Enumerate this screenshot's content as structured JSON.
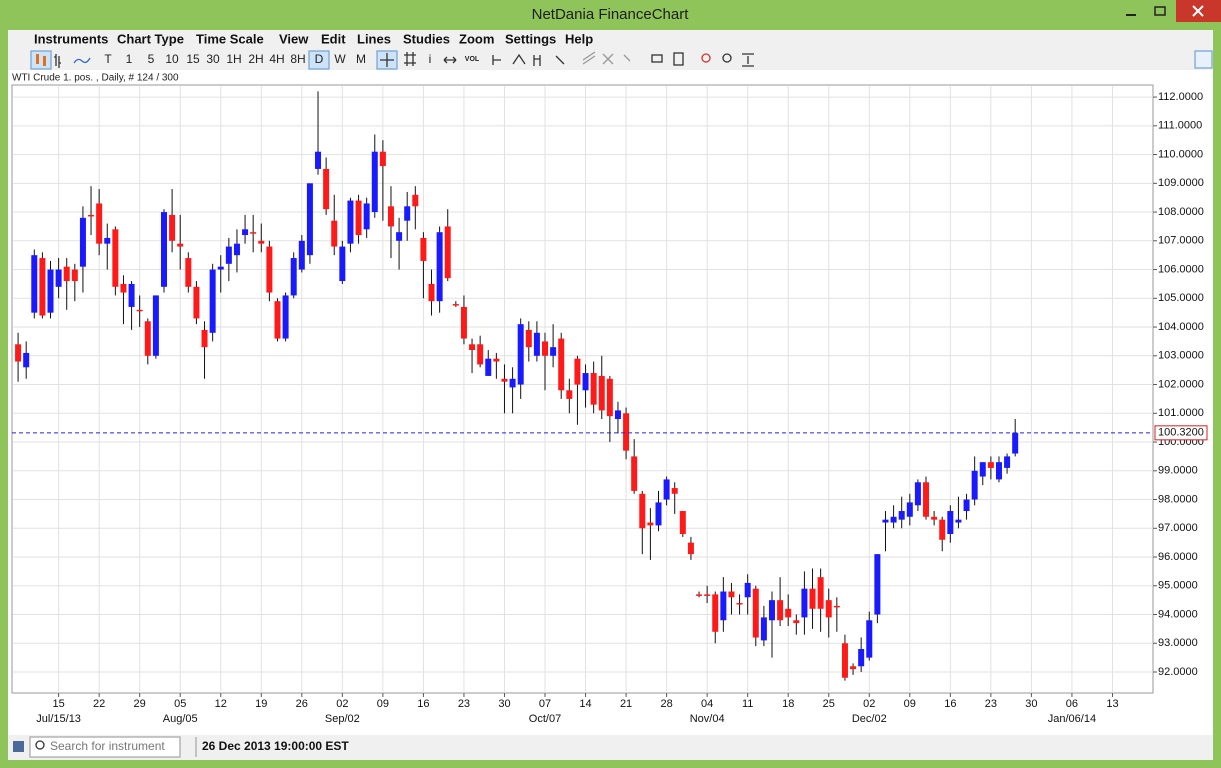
{
  "window": {
    "title": "NetDania FinanceChart"
  },
  "menu": [
    "Instruments",
    "Chart Type",
    "Time Scale",
    "View",
    "Edit",
    "Lines",
    "Studies",
    "Zoom",
    "Settings",
    "Help"
  ],
  "toolbar": {
    "periods": [
      "T",
      "1",
      "5",
      "10",
      "15",
      "30",
      "1H",
      "2H",
      "4H",
      "8H",
      "D",
      "W",
      "M"
    ],
    "info": "i",
    "volume": "VOL"
  },
  "chart_info": "WTI Crude 1. pos. , Daily, # 124 / 300",
  "chart_data": {
    "type": "candlestick",
    "up_color": "#1a1aff",
    "down_color": "#ff1a1a",
    "grid": true,
    "open": [
      103.4,
      102.6,
      104.5,
      106.4,
      104.5,
      105.4,
      106.1,
      106.0,
      106.1,
      107.9,
      108.3,
      106.9,
      107.4,
      105.5,
      104.7,
      104.6,
      104.2,
      103.0,
      105.4,
      107.9,
      106.9,
      106.4,
      105.4,
      103.9,
      103.8,
      106.0,
      106.2,
      106.5,
      107.2,
      107.3,
      107.0,
      106.8,
      104.9,
      103.6,
      105.1,
      106.0,
      106.5,
      109.5,
      109.5,
      107.7,
      105.6,
      106.9,
      108.4,
      107.4,
      108.0,
      110.1,
      108.2,
      107.0,
      107.7,
      108.6,
      107.1,
      105.5,
      104.9,
      107.5,
      104.8,
      104.7,
      103.4,
      103.4,
      102.3,
      102.9,
      102.2,
      101.9,
      102.0,
      103.9,
      103.0,
      103.5,
      103.0,
      103.6,
      101.8,
      102.9,
      101.8,
      102.4,
      102.3,
      102.2,
      100.8,
      101.0,
      99.5,
      98.2,
      97.2,
      97.1,
      98.0,
      98.4,
      97.6,
      96.5,
      94.7,
      94.7,
      94.7,
      93.8,
      94.8,
      94.4,
      94.6,
      94.9,
      93.1,
      93.8,
      94.5,
      94.2,
      93.8,
      93.9,
      94.9,
      95.3,
      94.5,
      94.3,
      93.0,
      92.2,
      92.2,
      92.5,
      94.0,
      97.2,
      97.2,
      97.3,
      97.4,
      97.8,
      98.6,
      97.4,
      97.3,
      96.8,
      97.2,
      97.6,
      98.0,
      98.8,
      99.3,
      98.7,
      99.1,
      99.6
    ],
    "high": [
      103.8,
      103.5,
      106.7,
      106.6,
      106.3,
      106.4,
      106.4,
      106.2,
      108.2,
      108.9,
      108.8,
      107.6,
      107.5,
      105.8,
      105.6,
      105.1,
      104.3,
      105.1,
      108.1,
      108.8,
      107.9,
      106.6,
      105.6,
      104.2,
      106.2,
      106.5,
      107.1,
      107.4,
      107.9,
      107.9,
      107.6,
      107.0,
      105.0,
      105.2,
      106.6,
      107.2,
      109.0,
      112.2,
      109.9,
      108.6,
      107.0,
      108.5,
      108.6,
      108.5,
      110.7,
      110.5,
      108.9,
      107.8,
      108.7,
      108.9,
      107.3,
      106.0,
      107.5,
      108.1,
      104.9,
      105.1,
      103.6,
      103.7,
      103.2,
      103.1,
      102.7,
      102.6,
      104.3,
      104.2,
      104.2,
      103.8,
      104.1,
      103.8,
      102.2,
      103.0,
      102.7,
      102.8,
      103.0,
      102.3,
      101.4,
      101.2,
      100.1,
      98.3,
      97.7,
      98.3,
      98.8,
      98.6,
      97.6,
      96.7,
      94.8,
      95.0,
      94.8,
      95.3,
      95.1,
      94.7,
      95.4,
      95.0,
      94.3,
      94.8,
      95.3,
      94.7,
      94.0,
      95.5,
      95.6,
      95.6,
      94.9,
      94.6,
      93.3,
      92.3,
      93.2,
      94.1,
      96.1,
      97.6,
      97.8,
      98.1,
      98.2,
      98.7,
      98.8,
      97.6,
      97.4,
      97.8,
      98.1,
      98.2,
      99.5,
      99.3,
      99.5,
      99.5,
      99.6,
      100.8
    ],
    "low": [
      102.1,
      102.2,
      104.3,
      104.3,
      104.3,
      105.0,
      104.6,
      104.9,
      105.2,
      107.2,
      106.5,
      106.0,
      105.1,
      104.1,
      103.9,
      104.0,
      102.7,
      102.9,
      105.2,
      106.6,
      106.0,
      105.2,
      104.1,
      102.2,
      103.5,
      105.2,
      105.6,
      105.9,
      106.9,
      106.6,
      106.6,
      104.9,
      103.5,
      103.5,
      105.0,
      105.9,
      106.2,
      109.3,
      107.9,
      106.5,
      105.5,
      106.6,
      106.9,
      107.1,
      107.8,
      107.7,
      106.4,
      106.0,
      107.0,
      107.4,
      105.0,
      104.4,
      104.5,
      105.6,
      104.7,
      103.4,
      102.4,
      102.6,
      102.3,
      102.2,
      101.0,
      101.0,
      101.5,
      102.8,
      102.8,
      101.8,
      102.6,
      101.5,
      101.0,
      100.6,
      101.2,
      101.0,
      100.8,
      100.0,
      100.3,
      99.4,
      98.2,
      96.1,
      95.9,
      96.9,
      97.8,
      97.5,
      96.7,
      95.9,
      94.6,
      94.4,
      93.0,
      93.4,
      94.0,
      94.0,
      94.0,
      92.9,
      92.9,
      92.5,
      93.6,
      93.6,
      93.3,
      93.3,
      93.5,
      93.4,
      93.2,
      93.4,
      91.7,
      91.9,
      92.0,
      92.4,
      93.7,
      96.2,
      97.0,
      97.0,
      97.1,
      97.6,
      97.3,
      97.1,
      96.2,
      96.5,
      97.0,
      97.3,
      97.8,
      98.5,
      98.7,
      98.6,
      98.9,
      99.5
    ],
    "close": [
      102.8,
      103.1,
      106.5,
      104.4,
      106.0,
      106.0,
      105.6,
      105.6,
      107.8,
      107.85,
      106.9,
      107.1,
      105.4,
      105.2,
      105.5,
      104.6,
      103.0,
      105.1,
      108.0,
      107.0,
      106.8,
      105.4,
      104.3,
      103.3,
      106.0,
      106.1,
      106.8,
      106.9,
      107.4,
      107.3,
      106.9,
      105.2,
      103.6,
      105.1,
      106.4,
      107.0,
      109.0,
      110.1,
      108.1,
      106.8,
      106.8,
      108.4,
      107.2,
      108.3,
      110.1,
      109.6,
      107.5,
      107.3,
      108.2,
      108.2,
      106.3,
      104.9,
      107.3,
      105.7,
      104.8,
      103.6,
      103.2,
      102.7,
      102.9,
      102.8,
      102.1,
      102.2,
      104.1,
      103.3,
      103.8,
      103.0,
      103.3,
      101.8,
      101.5,
      102.0,
      102.4,
      101.3,
      101.1,
      100.9,
      101.1,
      99.7,
      98.3,
      97.0,
      97.1,
      97.9,
      98.7,
      98.2,
      96.8,
      96.1,
      94.7,
      94.7,
      93.4,
      94.8,
      94.6,
      94.4,
      95.1,
      93.2,
      93.9,
      94.5,
      93.8,
      93.9,
      93.7,
      94.9,
      94.2,
      94.2,
      93.9,
      94.3,
      91.8,
      92.1,
      92.8,
      93.8,
      96.1,
      97.3,
      97.4,
      97.6,
      97.9,
      98.6,
      97.4,
      97.3,
      96.6,
      97.6,
      97.3,
      98.0,
      99.0,
      99.3,
      99.1,
      99.3,
      99.5,
      100.32
    ],
    "last": {
      "value": 100.32,
      "label": "100.3200"
    },
    "ylim": [
      91.27,
      112.42
    ],
    "yticks": [
      {
        "value": 92,
        "label": "92.0000"
      },
      {
        "value": 93,
        "label": "93.0000"
      },
      {
        "value": 94,
        "label": "94.0000"
      },
      {
        "value": 95,
        "label": "95.0000"
      },
      {
        "value": 96,
        "label": "96.0000"
      },
      {
        "value": 97,
        "label": "97.0000"
      },
      {
        "value": 98,
        "label": "98.0000"
      },
      {
        "value": 99,
        "label": "99.0000"
      },
      {
        "value": 100,
        "label": "100.0000"
      },
      {
        "value": 101,
        "label": "101.0000"
      },
      {
        "value": 102,
        "label": "102.0000"
      },
      {
        "value": 103,
        "label": "103.0000"
      },
      {
        "value": 104,
        "label": "104.0000"
      },
      {
        "value": 105,
        "label": "105.0000"
      },
      {
        "value": 106,
        "label": "106.0000"
      },
      {
        "value": 107,
        "label": "107.0000"
      },
      {
        "value": 108,
        "label": "108.0000"
      },
      {
        "value": 109,
        "label": "109.0000"
      },
      {
        "value": 110,
        "label": "110.0000"
      },
      {
        "value": 111,
        "label": "111.0000"
      },
      {
        "value": 112,
        "label": "112.0000"
      }
    ],
    "xlim": [
      -0.75,
      140
    ],
    "xticks": [
      {
        "value": 5,
        "label": "15"
      },
      {
        "value": 10,
        "label": "22"
      },
      {
        "value": 15,
        "label": "29"
      },
      {
        "value": 20,
        "label": "05"
      },
      {
        "value": 25,
        "label": "12"
      },
      {
        "value": 30,
        "label": "19"
      },
      {
        "value": 35,
        "label": "26"
      },
      {
        "value": 40,
        "label": "02"
      },
      {
        "value": 45,
        "label": "09"
      },
      {
        "value": 50,
        "label": "16"
      },
      {
        "value": 55,
        "label": "23"
      },
      {
        "value": 60,
        "label": "30"
      },
      {
        "value": 65,
        "label": "07"
      },
      {
        "value": 70,
        "label": "14"
      },
      {
        "value": 75,
        "label": "21"
      },
      {
        "value": 80,
        "label": "28"
      },
      {
        "value": 85,
        "label": "04"
      },
      {
        "value": 90,
        "label": "11"
      },
      {
        "value": 95,
        "label": "18"
      },
      {
        "value": 100,
        "label": "25"
      },
      {
        "value": 105,
        "label": "02"
      },
      {
        "value": 110,
        "label": "09"
      },
      {
        "value": 115,
        "label": "16"
      },
      {
        "value": 120,
        "label": "23"
      },
      {
        "value": 125,
        "label": "30"
      },
      {
        "value": 130,
        "label": "06"
      },
      {
        "value": 135,
        "label": "13"
      }
    ],
    "month_ticks": [
      {
        "value": 5,
        "label": "Jul/15/13"
      },
      {
        "value": 20,
        "label": "Aug/05"
      },
      {
        "value": 40,
        "label": "Sep/02"
      },
      {
        "value": 65,
        "label": "Oct/07"
      },
      {
        "value": 85,
        "label": "Nov/04"
      },
      {
        "value": 105,
        "label": "Dec/02"
      },
      {
        "value": 130,
        "label": "Jan/06/14"
      }
    ]
  },
  "status": {
    "search_placeholder": "Search for instrument",
    "timestamp": "26 Dec 2013 19:00:00 EST"
  }
}
